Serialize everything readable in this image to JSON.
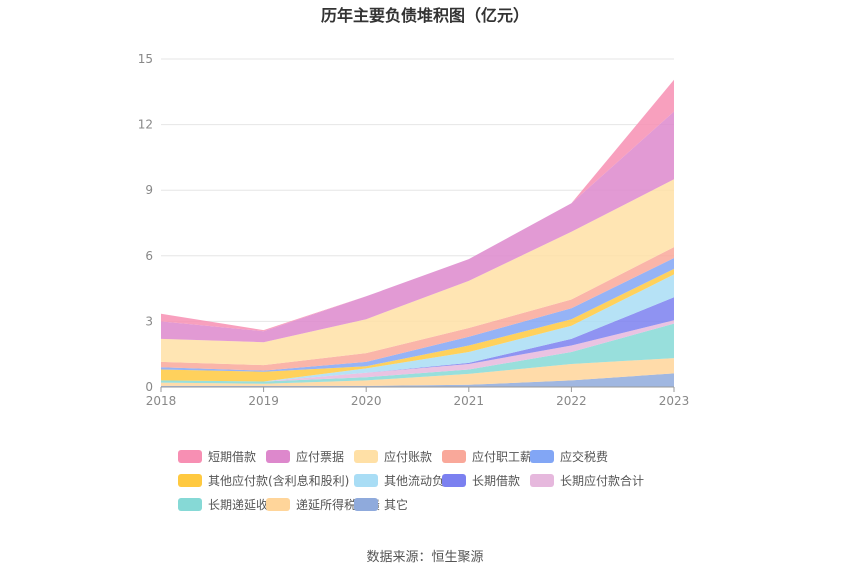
{
  "chart_data": {
    "type": "area",
    "stacked": true,
    "title": "历年主要负债堆积图（亿元）",
    "x": [
      "2018",
      "2019",
      "2020",
      "2021",
      "2022",
      "2023"
    ],
    "ylim": [
      0,
      15
    ],
    "yticks": [
      0,
      3,
      6,
      9,
      12,
      15
    ],
    "grid": true,
    "legend_position": "bottom",
    "series": [
      {
        "name": "其它",
        "color": "#8faadc",
        "values": [
          0.05,
          0.05,
          0.05,
          0.1,
          0.3,
          0.62
        ]
      },
      {
        "name": "递延所得税负债",
        "color": "#ffd59a",
        "values": [
          0.15,
          0.1,
          0.25,
          0.5,
          0.75,
          0.7
        ]
      },
      {
        "name": "长期递延收益",
        "color": "#86d9d6",
        "values": [
          0.1,
          0.1,
          0.15,
          0.2,
          0.55,
          1.58
        ]
      },
      {
        "name": "长期应付款合计",
        "color": "#e6b8dd",
        "values": [
          0.0,
          0.0,
          0.2,
          0.25,
          0.3,
          0.15
        ]
      },
      {
        "name": "长期借款",
        "color": "#7b80f0",
        "values": [
          0.0,
          0.0,
          0.0,
          0.05,
          0.3,
          1.05
        ]
      },
      {
        "name": "其他流动负债",
        "color": "#a9ddf5",
        "values": [
          0.0,
          0.0,
          0.2,
          0.5,
          0.6,
          1.05
        ]
      },
      {
        "name": "其他应付款(含利息和股利)",
        "color": "#ffc940",
        "values": [
          0.5,
          0.45,
          0.1,
          0.3,
          0.3,
          0.25
        ]
      },
      {
        "name": "应交税费",
        "color": "#82a6f5",
        "values": [
          0.1,
          0.05,
          0.2,
          0.4,
          0.5,
          0.5
        ]
      },
      {
        "name": "应付职工薪酬",
        "color": "#f9a89a",
        "values": [
          0.25,
          0.25,
          0.4,
          0.4,
          0.4,
          0.5
        ]
      },
      {
        "name": "应付账款",
        "color": "#ffe0a6",
        "values": [
          1.05,
          1.05,
          1.55,
          2.15,
          3.1,
          3.1
        ]
      },
      {
        "name": "应付票据",
        "color": "#dd88cc",
        "values": [
          0.8,
          0.5,
          1.05,
          1.0,
          1.3,
          3.1
        ]
      },
      {
        "name": "短期借款",
        "color": "#f78fb3",
        "values": [
          0.35,
          0.05,
          0.0,
          0.0,
          0.0,
          1.45
        ]
      }
    ]
  },
  "legend_order": [
    "短期借款",
    "应付票据",
    "应付账款",
    "应付职工薪酬",
    "应交税费",
    "其他应付款(含利息和股利)",
    "其他流动负债",
    "长期借款",
    "长期应付款合计",
    "长期递延收益",
    "递延所得税负债",
    "其它"
  ],
  "source": "数据来源：恒生聚源"
}
